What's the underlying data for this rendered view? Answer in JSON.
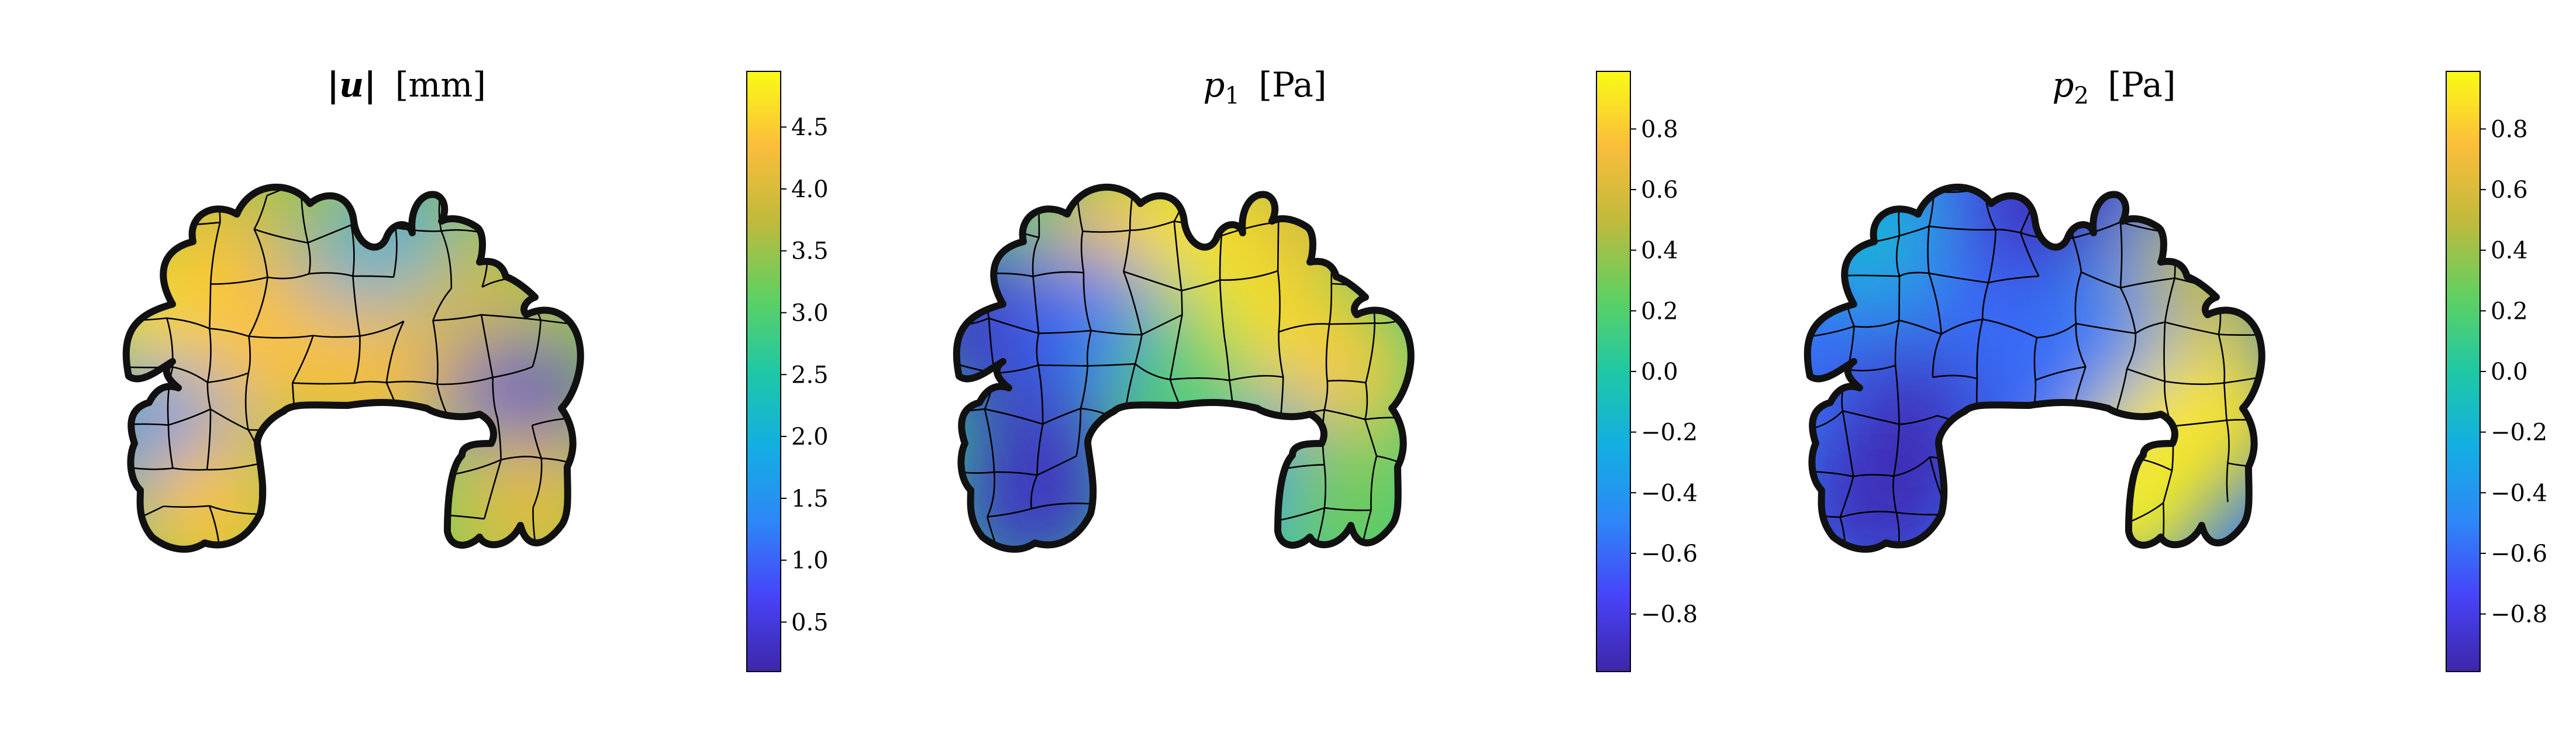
{
  "colormap": {
    "name": "parula",
    "stops": [
      "#3e26a8",
      "#4743f8",
      "#2e87f7",
      "#13aee2",
      "#1fc8a4",
      "#60d061",
      "#c0ba3c",
      "#fbbd3c",
      "#f9fb15"
    ]
  },
  "outline_color": "#111111",
  "chart_data": [
    {
      "type": "heatmap",
      "title_symbol": "|u|",
      "title_unit": "[mm]",
      "colorbar": {
        "range": [
          0.1,
          4.95
        ],
        "ticks": [
          0.5,
          1.0,
          1.5,
          2.0,
          2.5,
          3.0,
          3.5,
          4.0,
          4.5
        ],
        "tick_labels": [
          "0.5",
          "1.0",
          "1.5",
          "2.0",
          "2.5",
          "3.0",
          "3.5",
          "4.0",
          "4.5"
        ]
      }
    },
    {
      "type": "heatmap",
      "title_symbol": "p",
      "title_subscript": "1",
      "title_unit": "[Pa]",
      "colorbar": {
        "range": [
          -0.99,
          0.99
        ],
        "ticks": [
          -0.8,
          -0.6,
          -0.4,
          -0.2,
          0.0,
          0.2,
          0.4,
          0.6,
          0.8
        ],
        "tick_labels": [
          "−0.8",
          "−0.6",
          "−0.4",
          "−0.2",
          "0.0",
          "0.2",
          "0.4",
          "0.6",
          "0.8"
        ]
      }
    },
    {
      "type": "heatmap",
      "title_symbol": "p",
      "title_subscript": "2",
      "title_unit": "[Pa]",
      "colorbar": {
        "range": [
          -0.99,
          0.99
        ],
        "ticks": [
          -0.8,
          -0.6,
          -0.4,
          -0.2,
          0.0,
          0.2,
          0.4,
          0.6,
          0.8
        ],
        "tick_labels": [
          "−0.8",
          "−0.6",
          "−0.4",
          "−0.2",
          "0.0",
          "0.2",
          "0.4",
          "0.6",
          "0.8"
        ]
      }
    }
  ]
}
